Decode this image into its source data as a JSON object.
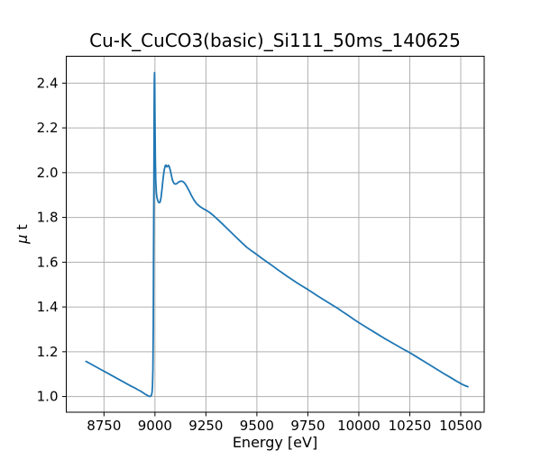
{
  "figure": {
    "background": "#ffffff"
  },
  "chart_data": {
    "type": "line",
    "title": "Cu-K_CuCO3(basic)_Si111_50ms_140625",
    "xlabel": "Energy [eV]",
    "ylabel": "μ t",
    "ylabel_parts": {
      "symbol": "μ",
      "rest": " t"
    },
    "xlim": [
      8565,
      10615
    ],
    "ylim": [
      0.93,
      2.52
    ],
    "grid": true,
    "legend": "none",
    "grid_color": "#b0b0b0",
    "axis_color": "#000000",
    "line_color": "#1f77b4",
    "x_ticks": [
      {
        "value": 8750,
        "label": "8750"
      },
      {
        "value": 9000,
        "label": "9000"
      },
      {
        "value": 9250,
        "label": "9250"
      },
      {
        "value": 9500,
        "label": "9500"
      },
      {
        "value": 9750,
        "label": "9750"
      },
      {
        "value": 10000,
        "label": "10000"
      },
      {
        "value": 10250,
        "label": "10250"
      },
      {
        "value": 10500,
        "label": "10500"
      }
    ],
    "y_ticks": [
      {
        "value": 1.0,
        "label": "1.0"
      },
      {
        "value": 1.2,
        "label": "1.2"
      },
      {
        "value": 1.4,
        "label": "1.4"
      },
      {
        "value": 1.6,
        "label": "1.6"
      },
      {
        "value": 1.8,
        "label": "1.8"
      },
      {
        "value": 2.0,
        "label": "2.0"
      },
      {
        "value": 2.2,
        "label": "2.2"
      },
      {
        "value": 2.4,
        "label": "2.4"
      }
    ],
    "series": [
      {
        "name": "mu_t_vs_energy",
        "color": "#1f77b4",
        "points": [
          [
            8662,
            1.157
          ],
          [
            8680,
            1.148
          ],
          [
            8700,
            1.138
          ],
          [
            8720,
            1.128
          ],
          [
            8740,
            1.118
          ],
          [
            8760,
            1.108
          ],
          [
            8780,
            1.098
          ],
          [
            8800,
            1.088
          ],
          [
            8820,
            1.078
          ],
          [
            8840,
            1.068
          ],
          [
            8860,
            1.058
          ],
          [
            8880,
            1.048
          ],
          [
            8900,
            1.039
          ],
          [
            8915,
            1.031
          ],
          [
            8930,
            1.024
          ],
          [
            8945,
            1.015
          ],
          [
            8955,
            1.009
          ],
          [
            8965,
            1.004
          ],
          [
            8972,
            1.001
          ],
          [
            8978,
            1.001
          ],
          [
            8983,
            1.006
          ],
          [
            8986,
            1.02
          ],
          [
            8988,
            1.05
          ],
          [
            8990,
            1.12
          ],
          [
            8992,
            1.32
          ],
          [
            8993,
            1.6
          ],
          [
            8995,
            2.0
          ],
          [
            8996,
            2.28
          ],
          [
            8997,
            2.41
          ],
          [
            8998,
            2.447
          ],
          [
            8999,
            2.39
          ],
          [
            9000,
            2.25
          ],
          [
            9002,
            2.06
          ],
          [
            9004,
            1.96
          ],
          [
            9007,
            1.91
          ],
          [
            9010,
            1.888
          ],
          [
            9015,
            1.872
          ],
          [
            9020,
            1.866
          ],
          [
            9025,
            1.868
          ],
          [
            9030,
            1.89
          ],
          [
            9035,
            1.93
          ],
          [
            9040,
            1.975
          ],
          [
            9045,
            2.01
          ],
          [
            9050,
            2.03
          ],
          [
            9054,
            2.034
          ],
          [
            9058,
            2.026
          ],
          [
            9062,
            2.028
          ],
          [
            9066,
            2.033
          ],
          [
            9070,
            2.027
          ],
          [
            9075,
            2.012
          ],
          [
            9080,
            1.99
          ],
          [
            9086,
            1.966
          ],
          [
            9092,
            1.954
          ],
          [
            9098,
            1.949
          ],
          [
            9105,
            1.95
          ],
          [
            9112,
            1.955
          ],
          [
            9120,
            1.96
          ],
          [
            9128,
            1.962
          ],
          [
            9136,
            1.961
          ],
          [
            9144,
            1.955
          ],
          [
            9152,
            1.945
          ],
          [
            9160,
            1.932
          ],
          [
            9170,
            1.915
          ],
          [
            9180,
            1.896
          ],
          [
            9192,
            1.877
          ],
          [
            9205,
            1.861
          ],
          [
            9220,
            1.849
          ],
          [
            9235,
            1.84
          ],
          [
            9250,
            1.833
          ],
          [
            9270,
            1.821
          ],
          [
            9290,
            1.806
          ],
          [
            9310,
            1.789
          ],
          [
            9330,
            1.772
          ],
          [
            9350,
            1.754
          ],
          [
            9375,
            1.732
          ],
          [
            9400,
            1.71
          ],
          [
            9425,
            1.688
          ],
          [
            9450,
            1.667
          ],
          [
            9475,
            1.65
          ],
          [
            9500,
            1.634
          ],
          [
            9525,
            1.617
          ],
          [
            9550,
            1.601
          ],
          [
            9575,
            1.585
          ],
          [
            9600,
            1.568
          ],
          [
            9625,
            1.552
          ],
          [
            9650,
            1.536
          ],
          [
            9675,
            1.521
          ],
          [
            9700,
            1.506
          ],
          [
            9725,
            1.492
          ],
          [
            9750,
            1.478
          ],
          [
            9775,
            1.463
          ],
          [
            9800,
            1.448
          ],
          [
            9825,
            1.434
          ],
          [
            9850,
            1.42
          ],
          [
            9875,
            1.406
          ],
          [
            9900,
            1.392
          ],
          [
            9925,
            1.376
          ],
          [
            9950,
            1.361
          ],
          [
            9975,
            1.345
          ],
          [
            10000,
            1.33
          ],
          [
            10025,
            1.316
          ],
          [
            10050,
            1.302
          ],
          [
            10075,
            1.288
          ],
          [
            10100,
            1.274
          ],
          [
            10125,
            1.26
          ],
          [
            10150,
            1.247
          ],
          [
            10175,
            1.234
          ],
          [
            10200,
            1.221
          ],
          [
            10225,
            1.208
          ],
          [
            10250,
            1.196
          ],
          [
            10275,
            1.182
          ],
          [
            10300,
            1.168
          ],
          [
            10325,
            1.154
          ],
          [
            10350,
            1.14
          ],
          [
            10375,
            1.126
          ],
          [
            10400,
            1.112
          ],
          [
            10425,
            1.098
          ],
          [
            10450,
            1.085
          ],
          [
            10475,
            1.071
          ],
          [
            10500,
            1.058
          ],
          [
            10520,
            1.049
          ],
          [
            10535,
            1.044
          ]
        ]
      }
    ]
  }
}
